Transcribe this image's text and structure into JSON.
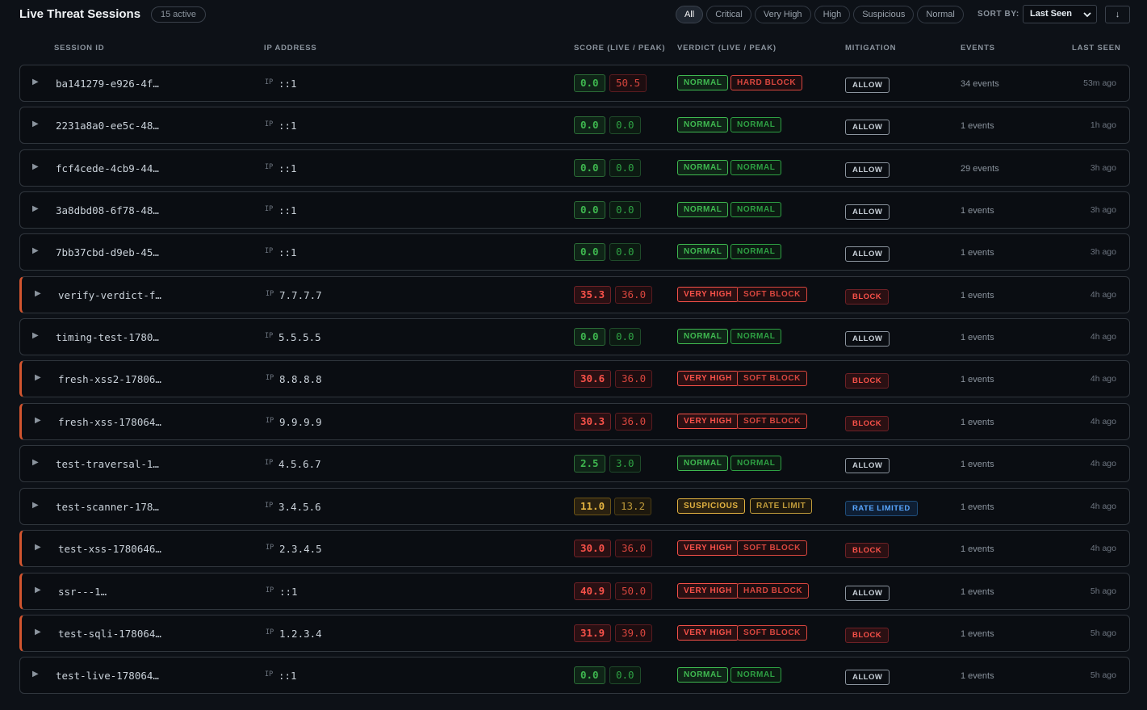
{
  "header": {
    "title": "Live Threat Sessions",
    "active_count": "15 active",
    "filters": [
      "All",
      "Critical",
      "Very High",
      "High",
      "Suspicious",
      "Normal"
    ],
    "active_filter": "All",
    "sort_label": "SORT BY:",
    "sort_value": "Last Seen",
    "sort_direction": "↓"
  },
  "columns": {
    "session_id": "SESSION ID",
    "ip_address": "IP ADDRESS",
    "score": "SCORE (LIVE / PEAK)",
    "verdict": "VERDICT (LIVE / PEAK)",
    "mitigation": "MITIGATION",
    "events": "EVENTS",
    "last_seen": "LAST SEEN"
  },
  "ip_prefix": "IP",
  "expand_glyph": "▶",
  "sessions": [
    {
      "id": "ba141279-e926-4f…",
      "ip": "::1",
      "score_live": "0.0",
      "score_peak": "50.5",
      "verdict_live": "NORMAL",
      "verdict_peak": "HARD BLOCK",
      "mitigation": "ALLOW",
      "events": "34 events",
      "last_seen": "53m ago"
    },
    {
      "id": "2231a8a0-ee5c-48…",
      "ip": "::1",
      "score_live": "0.0",
      "score_peak": "0.0",
      "verdict_live": "NORMAL",
      "verdict_peak": "NORMAL",
      "mitigation": "ALLOW",
      "events": "1 events",
      "last_seen": "1h ago"
    },
    {
      "id": "fcf4cede-4cb9-44…",
      "ip": "::1",
      "score_live": "0.0",
      "score_peak": "0.0",
      "verdict_live": "NORMAL",
      "verdict_peak": "NORMAL",
      "mitigation": "ALLOW",
      "events": "29 events",
      "last_seen": "3h ago"
    },
    {
      "id": "3a8dbd08-6f78-48…",
      "ip": "::1",
      "score_live": "0.0",
      "score_peak": "0.0",
      "verdict_live": "NORMAL",
      "verdict_peak": "NORMAL",
      "mitigation": "ALLOW",
      "events": "1 events",
      "last_seen": "3h ago"
    },
    {
      "id": "7bb37cbd-d9eb-45…",
      "ip": "::1",
      "score_live": "0.0",
      "score_peak": "0.0",
      "verdict_live": "NORMAL",
      "verdict_peak": "NORMAL",
      "mitigation": "ALLOW",
      "events": "1 events",
      "last_seen": "3h ago"
    },
    {
      "id": "verify-verdict-f…",
      "ip": "7.7.7.7",
      "score_live": "35.3",
      "score_peak": "36.0",
      "verdict_live": "VERY HIGH",
      "verdict_peak": "SOFT BLOCK",
      "mitigation": "BLOCK",
      "events": "1 events",
      "last_seen": "4h ago"
    },
    {
      "id": "timing-test-1780…",
      "ip": "5.5.5.5",
      "score_live": "0.0",
      "score_peak": "0.0",
      "verdict_live": "NORMAL",
      "verdict_peak": "NORMAL",
      "mitigation": "ALLOW",
      "events": "1 events",
      "last_seen": "4h ago"
    },
    {
      "id": "fresh-xss2-17806…",
      "ip": "8.8.8.8",
      "score_live": "30.6",
      "score_peak": "36.0",
      "verdict_live": "VERY HIGH",
      "verdict_peak": "SOFT BLOCK",
      "mitigation": "BLOCK",
      "events": "1 events",
      "last_seen": "4h ago"
    },
    {
      "id": "fresh-xss-178064…",
      "ip": "9.9.9.9",
      "score_live": "30.3",
      "score_peak": "36.0",
      "verdict_live": "VERY HIGH",
      "verdict_peak": "SOFT BLOCK",
      "mitigation": "BLOCK",
      "events": "1 events",
      "last_seen": "4h ago"
    },
    {
      "id": "test-traversal-1…",
      "ip": "4.5.6.7",
      "score_live": "2.5",
      "score_peak": "3.0",
      "verdict_live": "NORMAL",
      "verdict_peak": "NORMAL",
      "mitigation": "ALLOW",
      "events": "1 events",
      "last_seen": "4h ago"
    },
    {
      "id": "test-scanner-178…",
      "ip": "3.4.5.6",
      "score_live": "11.0",
      "score_peak": "13.2",
      "verdict_live": "SUSPICIOUS",
      "verdict_peak": "RATE LIMIT",
      "mitigation": "RATE LIMITED",
      "events": "1 events",
      "last_seen": "4h ago"
    },
    {
      "id": "test-xss-1780646…",
      "ip": "2.3.4.5",
      "score_live": "30.0",
      "score_peak": "36.0",
      "verdict_live": "VERY HIGH",
      "verdict_peak": "SOFT BLOCK",
      "mitigation": "BLOCK",
      "events": "1 events",
      "last_seen": "4h ago"
    },
    {
      "id": "ssr---1…",
      "ip": "::1",
      "score_live": "40.9",
      "score_peak": "50.0",
      "verdict_live": "VERY HIGH",
      "verdict_peak": "HARD BLOCK",
      "mitigation": "ALLOW",
      "events": "1 events",
      "last_seen": "5h ago"
    },
    {
      "id": "test-sqli-178064…",
      "ip": "1.2.3.4",
      "score_live": "31.9",
      "score_peak": "39.0",
      "verdict_live": "VERY HIGH",
      "verdict_peak": "SOFT BLOCK",
      "mitigation": "BLOCK",
      "events": "1 events",
      "last_seen": "5h ago"
    },
    {
      "id": "test-live-178064…",
      "ip": "::1",
      "score_live": "0.0",
      "score_peak": "0.0",
      "verdict_live": "NORMAL",
      "verdict_peak": "NORMAL",
      "mitigation": "ALLOW",
      "events": "1 events",
      "last_seen": "5h ago"
    }
  ]
}
